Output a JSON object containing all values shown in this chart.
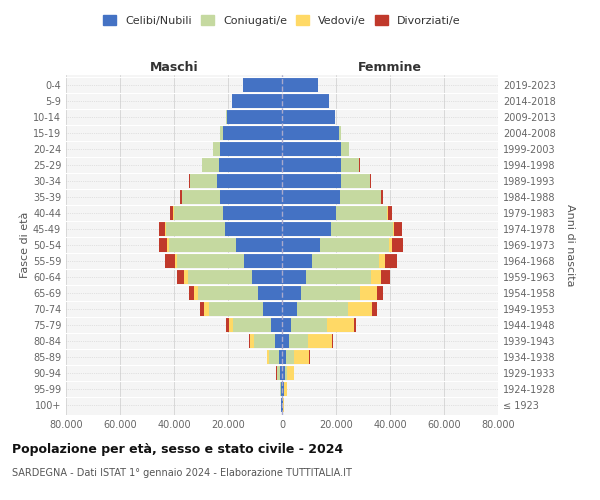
{
  "age_groups": [
    "100+",
    "95-99",
    "90-94",
    "85-89",
    "80-84",
    "75-79",
    "70-74",
    "65-69",
    "60-64",
    "55-59",
    "50-54",
    "45-49",
    "40-44",
    "35-39",
    "30-34",
    "25-29",
    "20-24",
    "15-19",
    "10-14",
    "5-9",
    "0-4"
  ],
  "birth_years": [
    "≤ 1923",
    "1924-1928",
    "1929-1933",
    "1934-1938",
    "1939-1943",
    "1944-1948",
    "1949-1953",
    "1954-1958",
    "1959-1963",
    "1964-1968",
    "1969-1973",
    "1974-1978",
    "1979-1983",
    "1984-1988",
    "1989-1993",
    "1994-1998",
    "1999-2003",
    "2004-2008",
    "2009-2013",
    "2014-2018",
    "2019-2023"
  ],
  "males": {
    "celibi": [
      200,
      400,
      700,
      1200,
      2500,
      4000,
      7000,
      9000,
      11000,
      14000,
      17000,
      21000,
      22000,
      23000,
      24000,
      23500,
      23000,
      22000,
      20500,
      18500,
      14500
    ],
    "coniugati": [
      100,
      300,
      1000,
      3500,
      8000,
      14000,
      20000,
      22000,
      24000,
      25000,
      25000,
      22000,
      18000,
      14000,
      10000,
      6000,
      2500,
      800,
      100,
      30,
      5
    ],
    "vedovi": [
      50,
      100,
      300,
      700,
      1500,
      1800,
      2000,
      1500,
      1200,
      800,
      600,
      400,
      200,
      150,
      100,
      50,
      20,
      5,
      0,
      0,
      0
    ],
    "divorziati": [
      10,
      20,
      50,
      150,
      400,
      900,
      1500,
      2000,
      2800,
      3500,
      3000,
      2200,
      1200,
      700,
      400,
      150,
      50,
      10,
      0,
      0,
      0
    ]
  },
  "females": {
    "nubili": [
      300,
      600,
      1000,
      1500,
      2500,
      3500,
      5500,
      7000,
      9000,
      11000,
      14000,
      18000,
      20000,
      21500,
      22000,
      22000,
      22000,
      21000,
      19500,
      17500,
      13500
    ],
    "coniugate": [
      100,
      300,
      1000,
      3000,
      7000,
      13000,
      19000,
      22000,
      24000,
      25000,
      25500,
      23000,
      19000,
      15000,
      10500,
      6500,
      2800,
      900,
      150,
      40,
      5
    ],
    "vedove": [
      200,
      800,
      2500,
      5500,
      9000,
      10000,
      9000,
      6000,
      3500,
      2000,
      1200,
      600,
      250,
      150,
      80,
      30,
      10,
      2,
      0,
      0,
      0
    ],
    "divorziate": [
      10,
      30,
      80,
      200,
      500,
      1000,
      1800,
      2500,
      3500,
      4500,
      4000,
      2800,
      1400,
      800,
      450,
      180,
      60,
      10,
      0,
      0,
      0
    ]
  },
  "colors": {
    "celibi": "#4472C4",
    "coniugati": "#C5D9A0",
    "vedovi": "#FFD966",
    "divorziati": "#C0392B"
  },
  "legend_labels": [
    "Celibi/Nubili",
    "Coniugati/e",
    "Vedovi/e",
    "Divorziati/e"
  ],
  "title": "Popolazione per età, sesso e stato civile - 2024",
  "subtitle": "SARDEGNA - Dati ISTAT 1° gennaio 2024 - Elaborazione TUTTITALIA.IT",
  "xlabel_left": "Maschi",
  "xlabel_right": "Femmine",
  "ylabel_left": "Fasce di età",
  "ylabel_right": "Anni di nascita",
  "xlim": 80000,
  "background_color": "#ffffff"
}
